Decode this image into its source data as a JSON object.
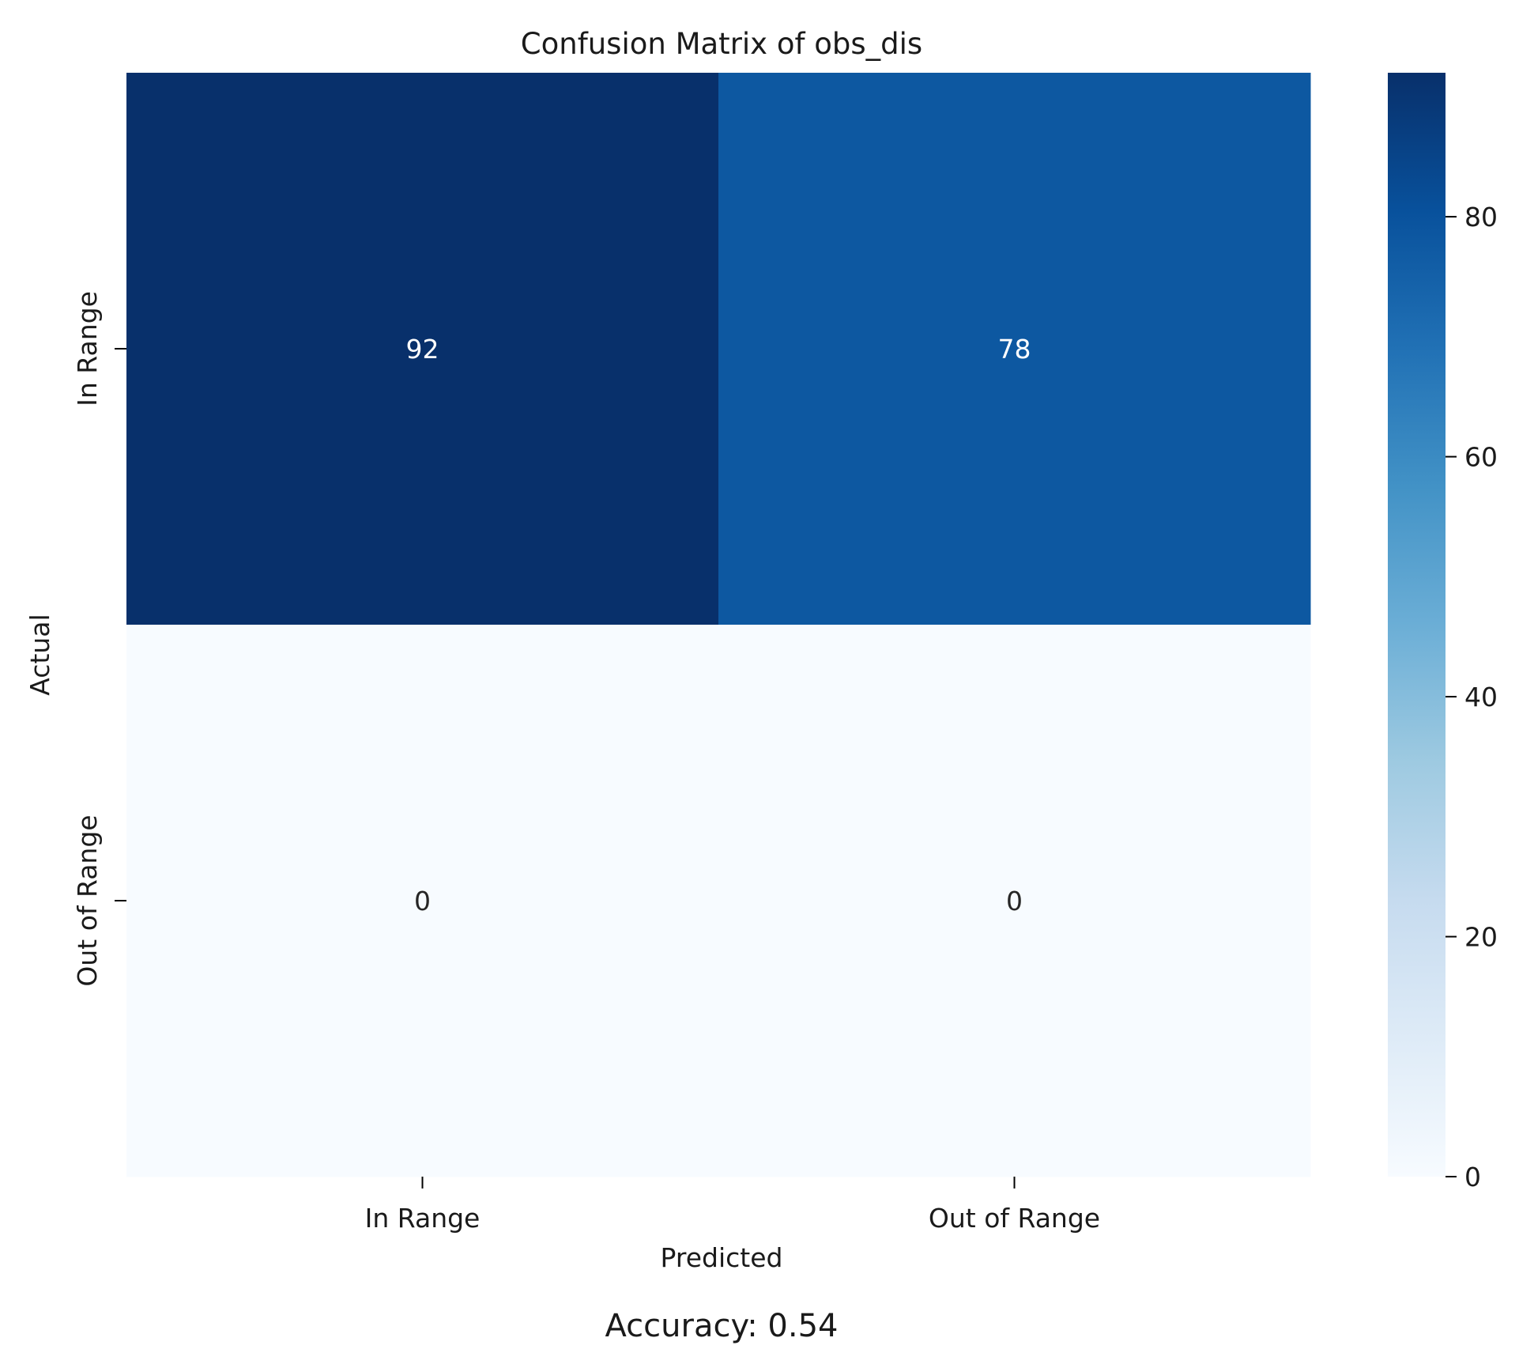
{
  "chart_data": {
    "type": "heatmap",
    "title": "Confusion Matrix of obs_dis",
    "xlabel": "Predicted",
    "ylabel": "Actual",
    "x_categories": [
      "In Range",
      "Out of Range"
    ],
    "y_categories": [
      "In Range",
      "Out of Range"
    ],
    "values": [
      [
        92,
        78
      ],
      [
        0,
        0
      ]
    ],
    "colormap": "Blues",
    "colorbar": {
      "min": 0,
      "max": 92,
      "ticks": [
        0,
        20,
        40,
        60,
        80
      ]
    },
    "footer": "Accuracy: 0.54"
  }
}
